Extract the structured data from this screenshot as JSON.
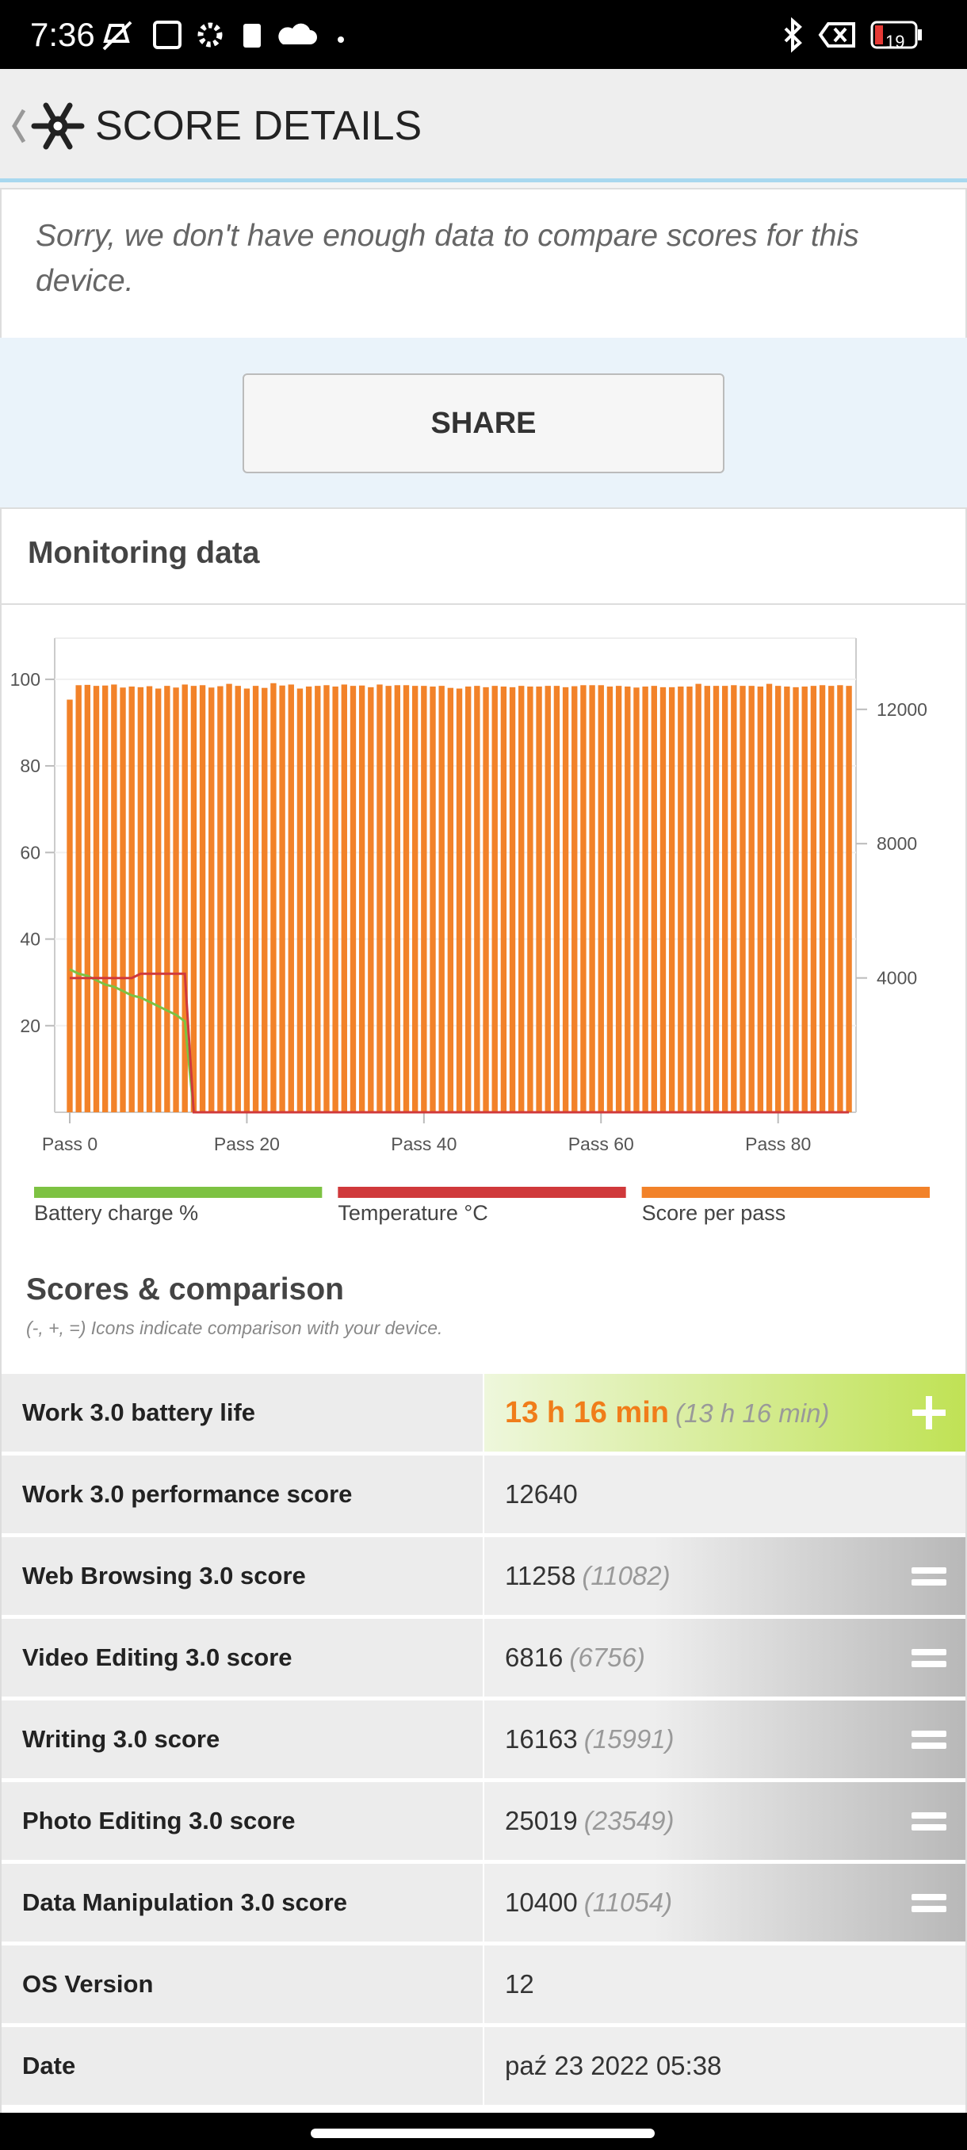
{
  "status_bar": {
    "time": "7:36",
    "battery": "19"
  },
  "header": {
    "title": "SCORE DETAILS"
  },
  "notice": {
    "text": "Sorry, we don't have enough data to compare scores for this device."
  },
  "share_button": {
    "label": "SHARE"
  },
  "monitoring": {
    "title": "Monitoring data"
  },
  "chart_data": {
    "type": "bar_line",
    "x": [
      0,
      1,
      2,
      3,
      4,
      5,
      6,
      7,
      8,
      9,
      10,
      11,
      12,
      13,
      14,
      15,
      16,
      17,
      18,
      19,
      20,
      21,
      22,
      23,
      24,
      25,
      26,
      27,
      28,
      29,
      30,
      31,
      32,
      33,
      34,
      35,
      36,
      37,
      38,
      39,
      40,
      41,
      42,
      43,
      44,
      45,
      46,
      47,
      48,
      49,
      50,
      51,
      52,
      53,
      54,
      55,
      56,
      57,
      58,
      59,
      60,
      61,
      62,
      63,
      64,
      65,
      66,
      67,
      68,
      69,
      70,
      71,
      72,
      73,
      74,
      75,
      76,
      77,
      78,
      79,
      80,
      81,
      82,
      83,
      84,
      85,
      86,
      87,
      88
    ],
    "xlim": [
      -1.7,
      88.8
    ],
    "xticks": [
      {
        "value": 0,
        "label": "Pass 0"
      },
      {
        "value": 20,
        "label": "Pass 20"
      },
      {
        "value": 40,
        "label": "Pass 40"
      },
      {
        "value": 60,
        "label": "Pass 60"
      },
      {
        "value": 80,
        "label": "Pass 80"
      }
    ],
    "ylim": [
      0,
      109.5
    ],
    "yticks": [
      20,
      40,
      60,
      80,
      100
    ],
    "y2lim": [
      0,
      14120
    ],
    "y2ticks": [
      4000,
      8000,
      12000
    ],
    "legend": "bottom",
    "series": [
      {
        "name": "Battery charge %",
        "color": "#7dc242",
        "kind": "line",
        "x": [
          0,
          1,
          2,
          3,
          4,
          5,
          6,
          7,
          8,
          9,
          10,
          11,
          12,
          13,
          14
        ],
        "values": [
          33,
          32,
          31.5,
          30.5,
          29.5,
          29,
          28,
          27,
          26.5,
          25.5,
          24.5,
          23.5,
          22.5,
          21,
          0
        ]
      },
      {
        "name": "Temperature °C",
        "color": "#d0393b",
        "kind": "line",
        "x": [
          0,
          7,
          8,
          13,
          14,
          88
        ],
        "values": [
          31,
          31,
          32,
          32,
          0,
          0
        ]
      },
      {
        "name": "Score per pass",
        "color": "#f28229",
        "kind": "bar",
        "axis": "y2",
        "values": [
          12290,
          12720,
          12730,
          12700,
          12710,
          12740,
          12650,
          12680,
          12660,
          12690,
          12620,
          12700,
          12650,
          12740,
          12700,
          12720,
          12650,
          12690,
          12760,
          12700,
          12620,
          12700,
          12640,
          12780,
          12710,
          12740,
          12620,
          12680,
          12700,
          12720,
          12680,
          12740,
          12700,
          12710,
          12660,
          12740,
          12700,
          12720,
          12720,
          12700,
          12700,
          12680,
          12700,
          12640,
          12620,
          12680,
          12700,
          12660,
          12700,
          12680,
          12660,
          12700,
          12680,
          12680,
          12700,
          12700,
          12660,
          12690,
          12720,
          12720,
          12720,
          12680,
          12700,
          12680,
          12650,
          12680,
          12700,
          12660,
          12660,
          12680,
          12680,
          12760,
          12700,
          12700,
          12700,
          12720,
          12700,
          12700,
          12680,
          12760,
          12700,
          12680,
          12660,
          12680,
          12700,
          12720,
          12700,
          12720,
          12700
        ]
      }
    ]
  },
  "scores": {
    "title": "Scores & comparison",
    "note": "(-, +, =) Icons indicate comparison with your device.",
    "rows": [
      {
        "label": "Work 3.0 battery life",
        "value": "13 h 16 min",
        "comparison": "(13 h 16 min)",
        "icon": "plus"
      },
      {
        "label": "Work 3.0 performance score",
        "value": "12640"
      },
      {
        "label": "Web Browsing 3.0 score",
        "value": "11258",
        "comparison": "(11082)",
        "icon": "equal"
      },
      {
        "label": "Video Editing 3.0 score",
        "value": "6816",
        "comparison": "(6756)",
        "icon": "equal"
      },
      {
        "label": "Writing 3.0 score",
        "value": "16163",
        "comparison": "(15991)",
        "icon": "equal"
      },
      {
        "label": "Photo Editing 3.0 score",
        "value": "25019",
        "comparison": "(23549)",
        "icon": "equal"
      },
      {
        "label": "Data Manipulation 3.0 score",
        "value": "10400",
        "comparison": "(11054)",
        "icon": "equal"
      },
      {
        "label": "OS Version",
        "value": "12"
      },
      {
        "label": "Date",
        "value": "paź 23 2022 05:38"
      }
    ]
  }
}
